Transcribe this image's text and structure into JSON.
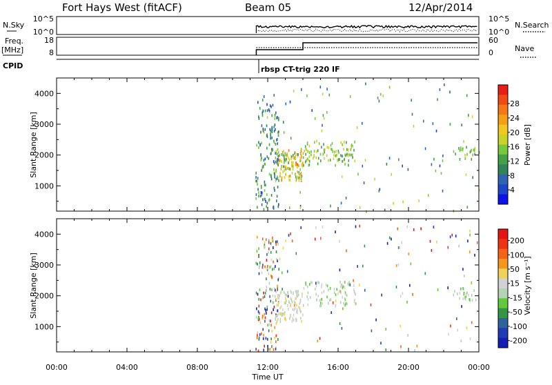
{
  "header": {
    "station": "Fort Hays West (fitACF)",
    "beam": "Beam 05",
    "date": "12/Apr/2014"
  },
  "top_panels": {
    "nsky": {
      "label": "N.Sky",
      "ticks": [
        "10^5",
        "10^0"
      ]
    },
    "nsearch": {
      "label": "N.Search",
      "ticks": [
        "10^5",
        "10^0"
      ]
    },
    "freq": {
      "label_line1": "Freq.",
      "label_line2": "[MHz]",
      "ticks": [
        "18",
        "8"
      ]
    },
    "nave": {
      "label": "Nave",
      "ticks": [
        "60",
        "0"
      ]
    },
    "cpid": {
      "label": "CPID",
      "program": "rbsp CT-trig 220 IF"
    }
  },
  "chart_data": [
    {
      "type": "scatter",
      "name": "power-panel",
      "ylabel": "Slant Range [km]",
      "xlabel": "",
      "xlim": [
        0,
        24
      ],
      "ylim": [
        180,
        4500
      ],
      "yticks": [
        1000,
        2000,
        3000,
        4000
      ],
      "colorbar": {
        "label": "Power [dB]",
        "ticks": [
          "4",
          "8",
          "12",
          "16",
          "20",
          "24",
          "28"
        ],
        "range": [
          0,
          30
        ],
        "colors": [
          "#0a14e6",
          "#1e46c8",
          "#2d64b4",
          "#32825a",
          "#46a046",
          "#78c83c",
          "#c8d228",
          "#f0c81e",
          "#f5a014",
          "#f57814",
          "#f04b14",
          "#e61e14"
        ]
      },
      "clusters": [
        {
          "t_from": 11.3,
          "t_to": 12.6,
          "r_from": 250,
          "r_to": 4000,
          "v_from": 4,
          "v_to": 14,
          "count": 140
        },
        {
          "t_from": 12.4,
          "t_to": 14.0,
          "r_from": 1200,
          "r_to": 2200,
          "v_from": 10,
          "v_to": 24,
          "count": 120
        },
        {
          "t_from": 14.0,
          "t_to": 17.0,
          "r_from": 1700,
          "r_to": 2500,
          "v_from": 10,
          "v_to": 18,
          "count": 90
        },
        {
          "t_from": 11.5,
          "t_to": 24.0,
          "r_from": 200,
          "r_to": 4400,
          "v_from": 4,
          "v_to": 18,
          "count": 110
        },
        {
          "t_from": 22.5,
          "t_to": 24.0,
          "r_from": 1900,
          "r_to": 2300,
          "v_from": 10,
          "v_to": 16,
          "count": 25
        }
      ]
    },
    {
      "type": "scatter",
      "name": "velocity-panel",
      "ylabel": "Slant Range [km]",
      "xlabel": "Time UT",
      "xlim": [
        0,
        24
      ],
      "ylim": [
        180,
        4500
      ],
      "yticks": [
        1000,
        2000,
        3000,
        4000
      ],
      "xticks": [
        "00:00",
        "04:00",
        "08:00",
        "12:00",
        "16:00",
        "20:00",
        "00:00"
      ],
      "xtick_hours": [
        0,
        4,
        8,
        12,
        16,
        20,
        24
      ],
      "colorbar": {
        "label": "Velocity [m s⁻¹]",
        "ticks": [
          "200",
          "100",
          "50",
          "15",
          "-15",
          "-50",
          "-100",
          "-200"
        ],
        "range": [
          -250,
          250
        ],
        "colors": [
          "#e61414",
          "#f03214",
          "#f56414",
          "#f5961e",
          "#f0d25a",
          "#d2d2d2",
          "#b4d2b4",
          "#64c83c",
          "#329646",
          "#2d64a0",
          "#1e3cb4",
          "#141eb4"
        ]
      },
      "clusters": [
        {
          "t_from": 11.3,
          "t_to": 12.6,
          "r_from": 250,
          "r_to": 4000,
          "v_from": -250,
          "v_to": 250,
          "count": 150
        },
        {
          "t_from": 12.4,
          "t_to": 14.0,
          "r_from": 1200,
          "r_to": 2200,
          "v_from": -30,
          "v_to": 60,
          "count": 110
        },
        {
          "t_from": 14.0,
          "t_to": 17.0,
          "r_from": 1700,
          "r_to": 2500,
          "v_from": -60,
          "v_to": 40,
          "count": 80
        },
        {
          "t_from": 11.5,
          "t_to": 24.0,
          "r_from": 200,
          "r_to": 4400,
          "v_from": -250,
          "v_to": 250,
          "count": 110
        },
        {
          "t_from": 22.5,
          "t_to": 24.0,
          "r_from": 1900,
          "r_to": 2300,
          "v_from": -60,
          "v_to": 20,
          "count": 25
        }
      ]
    }
  ]
}
